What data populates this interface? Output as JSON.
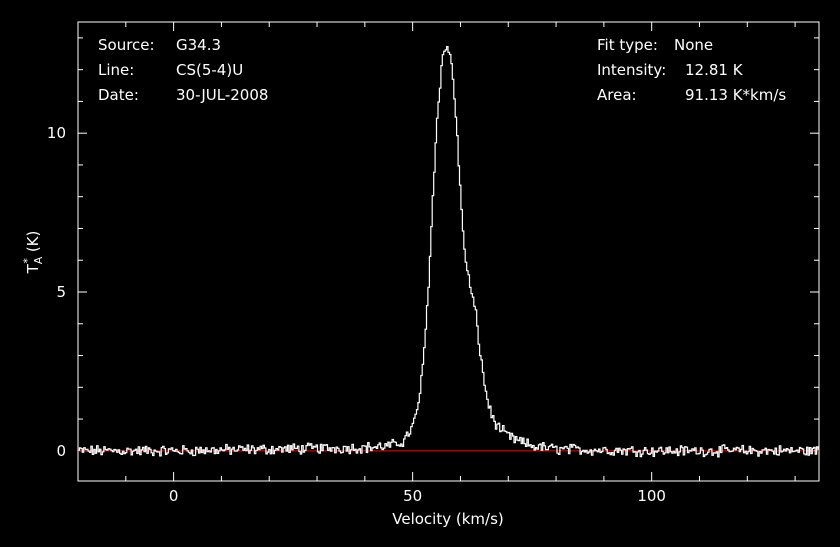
{
  "info_left": {
    "source_label": "Source:",
    "source_value": "G34.3",
    "line_label": "Line:",
    "line_value": "CS(5-4)U",
    "date_label": "Date:",
    "date_value": "30-JUL-2008"
  },
  "info_right": {
    "fit_label": "Fit type:",
    "fit_value": "None",
    "intensity_label": "Intensity:",
    "intensity_value": "12.81 K",
    "area_label": "Area:",
    "area_value": "91.13 K*km/s"
  },
  "chart_data": {
    "type": "line",
    "xlabel": "Velocity (km/s)",
    "ylabel_main": "T",
    "ylabel_sup": "*",
    "ylabel_sub": "A",
    "ylabel_unit": "(K)",
    "xlim": [
      -20,
      135
    ],
    "ylim": [
      -0.95,
      13.5
    ],
    "xticks": [
      0,
      50,
      100
    ],
    "yticks": [
      0,
      5,
      10
    ],
    "grid": false,
    "colors": {
      "background": "#000000",
      "axes": "#ffffff",
      "spectrum": "#ffffff",
      "baseline": "#ff0000"
    },
    "series": [
      {
        "x": [
          -20,
          0,
          20,
          40,
          45,
          48,
          50,
          51,
          52,
          53,
          54,
          55,
          56,
          57,
          58,
          59,
          60,
          61,
          62,
          63,
          64,
          65,
          66,
          67,
          68,
          70,
          72,
          75,
          80,
          100,
          120,
          135
        ],
        "values": [
          0.0,
          0.0,
          0.05,
          0.1,
          0.15,
          0.3,
          0.8,
          1.4,
          2.6,
          4.7,
          7.7,
          10.5,
          12.3,
          12.81,
          12.2,
          10.4,
          7.7,
          5.9,
          5.1,
          4.4,
          3.1,
          2.0,
          1.3,
          0.9,
          0.7,
          0.45,
          0.3,
          0.15,
          0.05,
          0.0,
          0.0,
          0.0
        ]
      },
      {
        "x": [
          -20,
          135
        ],
        "values": [
          0,
          0
        ]
      }
    ]
  }
}
